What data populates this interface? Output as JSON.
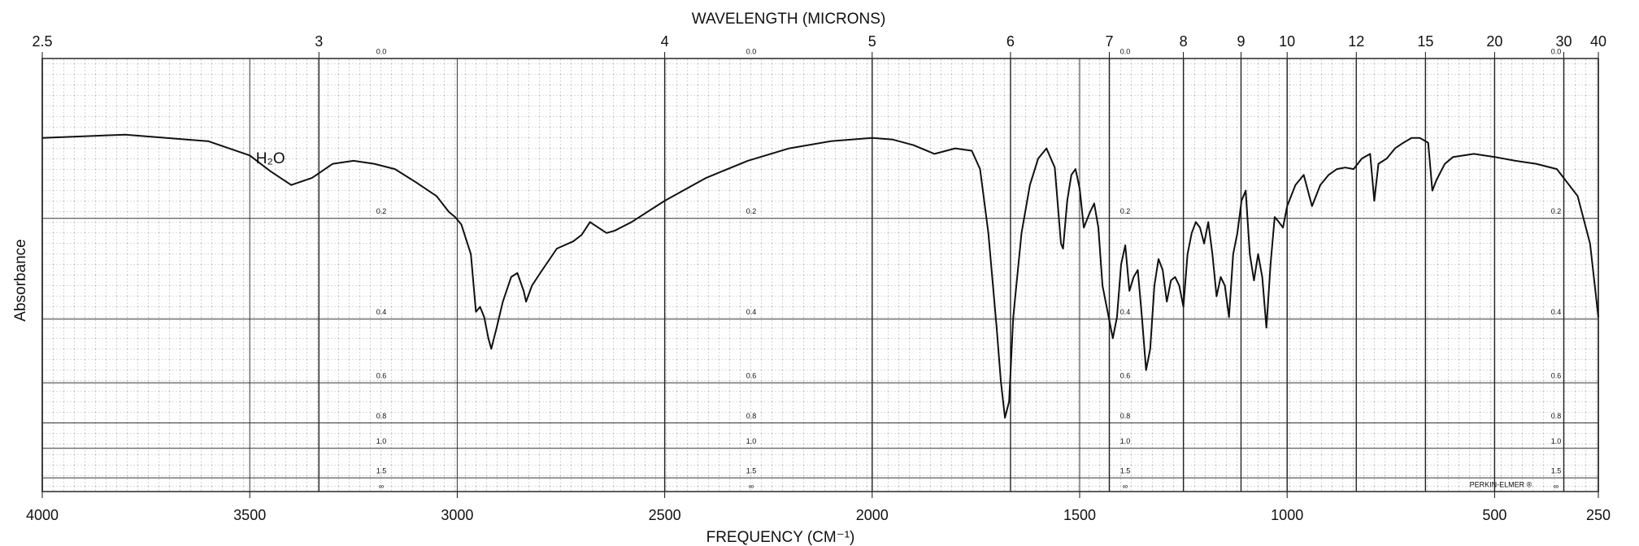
{
  "chart_data": {
    "type": "line",
    "title": "WAVELENGTH (MICRONS)",
    "xlabel": "FREQUENCY (CM⁻¹)",
    "ylabel": "Absorbance",
    "annotations": [
      "H₂O",
      "PERKIN-ELMER ®"
    ],
    "color": "#111111",
    "grid": true,
    "yscale": "transmittance",
    "xlim": [
      4000,
      250
    ],
    "xticks": [
      4000,
      3500,
      3000,
      2500,
      2000,
      1500,
      1000,
      500,
      250
    ],
    "x2ticks": [
      2.5,
      3,
      4,
      5,
      6,
      7,
      8,
      9,
      10,
      12,
      15,
      20,
      30,
      40
    ],
    "yticks": [
      {
        "value": 0,
        "label": "0.0"
      },
      0.2,
      0.4,
      0.6,
      0.8,
      {
        "value": 1,
        "label": "1.0"
      },
      1.5,
      {
        "value": null,
        "label": "∞"
      }
    ],
    "x": [
      4000,
      3800,
      3600,
      3500,
      3450,
      3400,
      3350,
      3300,
      3250,
      3200,
      3150,
      3100,
      3050,
      3020,
      3005,
      2990,
      2967,
      2955,
      2945,
      2935,
      2925,
      2918,
      2905,
      2890,
      2870,
      2855,
      2840,
      2834,
      2820,
      2800,
      2760,
      2720,
      2700,
      2680,
      2660,
      2640,
      2620,
      2580,
      2500,
      2400,
      2300,
      2200,
      2100,
      2000,
      1950,
      1900,
      1850,
      1800,
      1760,
      1740,
      1720,
      1700,
      1690,
      1680,
      1670,
      1660,
      1640,
      1620,
      1600,
      1580,
      1560,
      1545,
      1540,
      1530,
      1520,
      1510,
      1500,
      1490,
      1475,
      1465,
      1455,
      1445,
      1430,
      1420,
      1410,
      1400,
      1390,
      1380,
      1370,
      1360,
      1350,
      1340,
      1330,
      1320,
      1310,
      1300,
      1290,
      1280,
      1270,
      1260,
      1250,
      1240,
      1230,
      1220,
      1210,
      1200,
      1190,
      1180,
      1170,
      1160,
      1150,
      1140,
      1130,
      1120,
      1110,
      1100,
      1090,
      1080,
      1070,
      1060,
      1050,
      1040,
      1030,
      1020,
      1010,
      1000,
      980,
      960,
      940,
      920,
      900,
      880,
      860,
      840,
      820,
      800,
      790,
      780,
      760,
      740,
      720,
      700,
      680,
      660,
      650,
      640,
      620,
      600,
      550,
      500,
      450,
      400,
      350,
      300,
      270,
      250
    ],
    "values": [
      0.088,
      0.084,
      0.092,
      0.11,
      0.131,
      0.15,
      0.14,
      0.121,
      0.117,
      0.121,
      0.128,
      0.146,
      0.166,
      0.19,
      0.198,
      0.21,
      0.261,
      0.382,
      0.37,
      0.395,
      0.451,
      0.482,
      0.422,
      0.358,
      0.305,
      0.297,
      0.334,
      0.358,
      0.323,
      0.297,
      0.251,
      0.238,
      0.227,
      0.206,
      0.215,
      0.224,
      0.22,
      0.206,
      0.173,
      0.14,
      0.117,
      0.101,
      0.092,
      0.088,
      0.09,
      0.097,
      0.108,
      0.101,
      0.104,
      0.128,
      0.224,
      0.422,
      0.592,
      0.768,
      0.683,
      0.395,
      0.224,
      0.15,
      0.114,
      0.101,
      0.126,
      0.242,
      0.251,
      0.173,
      0.136,
      0.128,
      0.155,
      0.215,
      0.19,
      0.177,
      0.215,
      0.323,
      0.395,
      0.451,
      0.395,
      0.28,
      0.245,
      0.334,
      0.305,
      0.291,
      0.395,
      0.552,
      0.482,
      0.323,
      0.27,
      0.291,
      0.358,
      0.312,
      0.305,
      0.323,
      0.37,
      0.261,
      0.224,
      0.206,
      0.215,
      0.242,
      0.206,
      0.261,
      0.346,
      0.305,
      0.323,
      0.395,
      0.261,
      0.224,
      0.173,
      0.158,
      0.261,
      0.312,
      0.261,
      0.305,
      0.422,
      0.28,
      0.198,
      0.206,
      0.215,
      0.181,
      0.15,
      0.136,
      0.181,
      0.15,
      0.136,
      0.128,
      0.126,
      0.128,
      0.114,
      0.108,
      0.173,
      0.121,
      0.114,
      0.101,
      0.094,
      0.088,
      0.088,
      0.094,
      0.158,
      0.143,
      0.121,
      0.112,
      0.108,
      0.112,
      0.117,
      0.121,
      0.128,
      0.166,
      0.242,
      0.395
    ]
  }
}
